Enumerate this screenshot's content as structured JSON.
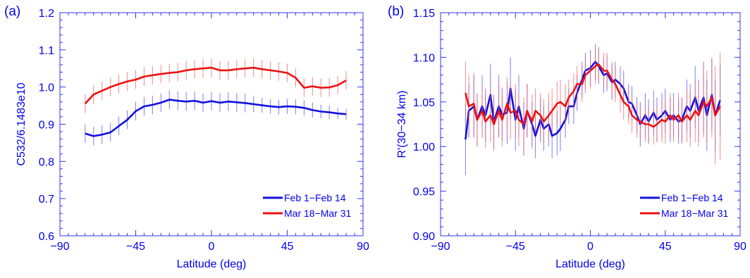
{
  "colors": {
    "axis": "#3333ff",
    "text": "#0000ee",
    "series1": "#1010e0",
    "series2": "#ee1111",
    "errbar1": "#5555ee",
    "errbar2": "#ee6666"
  },
  "chart_data": [
    {
      "panel_label": "(a)",
      "type": "line",
      "xlabel": "Latitude (deg)",
      "ylabel": "C532/6.1483e10",
      "xlim": [
        -90,
        90
      ],
      "ylim": [
        0.6,
        1.2
      ],
      "xticks": [
        -90,
        -45,
        0,
        45,
        90
      ],
      "xtick_labels": [
        "−90",
        "−45",
        "0",
        "45",
        "90"
      ],
      "yticks": [
        0.6,
        0.7,
        0.8,
        0.9,
        1.0,
        1.1,
        1.2
      ],
      "ytick_labels": [
        "0.6",
        "0.7",
        "0.8",
        "0.9",
        "1.0",
        "1.1",
        "1.2"
      ],
      "legend_position": "bottom-right",
      "error_bars": true,
      "series": [
        {
          "name": "Feb 1−Feb 14",
          "x": [
            -75,
            -70,
            -65,
            -60,
            -55,
            -50,
            -45,
            -40,
            -35,
            -30,
            -25,
            -20,
            -15,
            -10,
            -5,
            0,
            5,
            10,
            15,
            20,
            25,
            30,
            35,
            40,
            45,
            50,
            55,
            60,
            65,
            70,
            75,
            80
          ],
          "y": [
            0.875,
            0.868,
            0.872,
            0.878,
            0.895,
            0.912,
            0.935,
            0.948,
            0.952,
            0.958,
            0.966,
            0.963,
            0.961,
            0.963,
            0.958,
            0.962,
            0.958,
            0.961,
            0.959,
            0.957,
            0.954,
            0.951,
            0.948,
            0.946,
            0.948,
            0.947,
            0.944,
            0.938,
            0.934,
            0.932,
            0.929,
            0.927
          ],
          "err": [
            0.025,
            0.025,
            0.025,
            0.025,
            0.025,
            0.025,
            0.025,
            0.025,
            0.025,
            0.025,
            0.025,
            0.025,
            0.025,
            0.025,
            0.025,
            0.025,
            0.025,
            0.025,
            0.025,
            0.025,
            0.022,
            0.02,
            0.02,
            0.02,
            0.02,
            0.02,
            0.02,
            0.02,
            0.018,
            0.018,
            0.015,
            0.015
          ]
        },
        {
          "name": "Mar 18−Mar 31",
          "x": [
            -75,
            -70,
            -65,
            -60,
            -55,
            -50,
            -45,
            -40,
            -35,
            -30,
            -25,
            -20,
            -15,
            -10,
            -5,
            0,
            5,
            10,
            15,
            20,
            25,
            30,
            35,
            40,
            45,
            50,
            55,
            60,
            65,
            70,
            75,
            80
          ],
          "y": [
            0.955,
            0.98,
            0.99,
            1.0,
            1.008,
            1.015,
            1.02,
            1.028,
            1.032,
            1.035,
            1.038,
            1.04,
            1.045,
            1.048,
            1.05,
            1.052,
            1.045,
            1.045,
            1.048,
            1.05,
            1.052,
            1.048,
            1.045,
            1.042,
            1.038,
            1.025,
            0.998,
            1.002,
            0.998,
            0.999,
            1.005,
            1.018
          ],
          "err": [
            0.025,
            0.025,
            0.025,
            0.025,
            0.025,
            0.025,
            0.025,
            0.025,
            0.025,
            0.025,
            0.025,
            0.025,
            0.025,
            0.025,
            0.025,
            0.025,
            0.025,
            0.025,
            0.025,
            0.025,
            0.025,
            0.025,
            0.025,
            0.025,
            0.025,
            0.025,
            0.025,
            0.025,
            0.025,
            0.025,
            0.025,
            0.025
          ]
        }
      ]
    },
    {
      "panel_label": "(b)",
      "type": "line",
      "xlabel": "Latitude (deg)",
      "ylabel": "R'(30−34 km)",
      "xlim": [
        -90,
        90
      ],
      "ylim": [
        0.9,
        1.15
      ],
      "xticks": [
        -90,
        -45,
        0,
        45,
        90
      ],
      "xtick_labels": [
        "−90",
        "−45",
        "0",
        "45",
        "90"
      ],
      "yticks": [
        0.9,
        0.95,
        1.0,
        1.05,
        1.1,
        1.15
      ],
      "ytick_labels": [
        "0.90",
        "0.95",
        "1.00",
        "1.05",
        "1.10",
        "1.15"
      ],
      "legend_position": "bottom-right",
      "error_bars": true,
      "series": [
        {
          "name": "Feb 1−Feb 14",
          "x": [
            -75,
            -73,
            -70,
            -68,
            -65,
            -63,
            -60,
            -58,
            -55,
            -53,
            -50,
            -48,
            -45,
            -43,
            -40,
            -38,
            -35,
            -33,
            -30,
            -28,
            -25,
            -23,
            -20,
            -18,
            -15,
            -13,
            -10,
            -8,
            -5,
            -3,
            0,
            3,
            5,
            8,
            10,
            13,
            15,
            18,
            20,
            23,
            25,
            28,
            30,
            33,
            35,
            38,
            40,
            43,
            45,
            48,
            50,
            53,
            55,
            58,
            60,
            63,
            65,
            68,
            70,
            73,
            75,
            78
          ],
          "y": [
            1.008,
            1.04,
            1.045,
            1.03,
            1.045,
            1.035,
            1.058,
            1.028,
            1.045,
            1.036,
            1.038,
            1.065,
            1.03,
            1.045,
            1.02,
            1.04,
            1.025,
            1.012,
            1.03,
            1.02,
            1.025,
            1.012,
            1.015,
            1.02,
            1.03,
            1.045,
            1.045,
            1.06,
            1.075,
            1.085,
            1.088,
            1.095,
            1.09,
            1.08,
            1.082,
            1.072,
            1.075,
            1.07,
            1.065,
            1.05,
            1.048,
            1.035,
            1.025,
            1.035,
            1.028,
            1.038,
            1.03,
            1.035,
            1.04,
            1.03,
            1.035,
            1.028,
            1.03,
            1.045,
            1.04,
            1.055,
            1.04,
            1.055,
            1.035,
            1.058,
            1.035,
            1.052
          ],
          "err": [
            0.04,
            0.03,
            0.035,
            0.03,
            0.035,
            0.03,
            0.035,
            0.03,
            0.035,
            0.03,
            0.035,
            0.035,
            0.035,
            0.035,
            0.03,
            0.03,
            0.025,
            0.025,
            0.025,
            0.025,
            0.025,
            0.025,
            0.025,
            0.025,
            0.02,
            0.02,
            0.02,
            0.02,
            0.02,
            0.02,
            0.02,
            0.02,
            0.02,
            0.02,
            0.02,
            0.02,
            0.02,
            0.02,
            0.02,
            0.02,
            0.02,
            0.02,
            0.025,
            0.025,
            0.025,
            0.025,
            0.025,
            0.025,
            0.025,
            0.025,
            0.025,
            0.025,
            0.025,
            0.03,
            0.03,
            0.035,
            0.035,
            0.04,
            0.04,
            0.04,
            0.04,
            0.04
          ]
        },
        {
          "name": "Mar 18−Mar 31",
          "x": [
            -75,
            -73,
            -70,
            -68,
            -65,
            -63,
            -60,
            -58,
            -55,
            -53,
            -50,
            -48,
            -45,
            -43,
            -40,
            -38,
            -35,
            -33,
            -30,
            -28,
            -25,
            -23,
            -20,
            -18,
            -15,
            -13,
            -10,
            -8,
            -5,
            -3,
            0,
            3,
            5,
            8,
            10,
            13,
            15,
            18,
            20,
            23,
            25,
            28,
            30,
            33,
            35,
            38,
            40,
            43,
            45,
            48,
            50,
            53,
            55,
            58,
            60,
            63,
            65,
            68,
            70,
            73,
            75,
            78
          ],
          "y": [
            1.06,
            1.045,
            1.048,
            1.03,
            1.04,
            1.028,
            1.035,
            1.025,
            1.04,
            1.03,
            1.048,
            1.038,
            1.04,
            1.03,
            1.025,
            1.04,
            1.028,
            1.04,
            1.035,
            1.028,
            1.035,
            1.04,
            1.048,
            1.05,
            1.045,
            1.055,
            1.062,
            1.07,
            1.07,
            1.08,
            1.085,
            1.09,
            1.092,
            1.085,
            1.085,
            1.075,
            1.07,
            1.058,
            1.05,
            1.045,
            1.035,
            1.03,
            1.028,
            1.025,
            1.025,
            1.022,
            1.025,
            1.03,
            1.028,
            1.035,
            1.03,
            1.035,
            1.028,
            1.035,
            1.03,
            1.04,
            1.035,
            1.05,
            1.045,
            1.055,
            1.035,
            1.045
          ],
          "err": [
            0.035,
            0.035,
            0.035,
            0.03,
            0.03,
            0.03,
            0.03,
            0.03,
            0.03,
            0.03,
            0.03,
            0.03,
            0.03,
            0.03,
            0.03,
            0.03,
            0.03,
            0.025,
            0.025,
            0.025,
            0.025,
            0.025,
            0.025,
            0.025,
            0.025,
            0.02,
            0.02,
            0.02,
            0.02,
            0.02,
            0.02,
            0.02,
            0.02,
            0.02,
            0.02,
            0.02,
            0.02,
            0.02,
            0.02,
            0.02,
            0.02,
            0.02,
            0.02,
            0.02,
            0.02,
            0.02,
            0.02,
            0.025,
            0.025,
            0.025,
            0.025,
            0.025,
            0.025,
            0.03,
            0.03,
            0.035,
            0.035,
            0.04,
            0.04,
            0.045,
            0.055,
            0.06
          ]
        }
      ]
    }
  ]
}
